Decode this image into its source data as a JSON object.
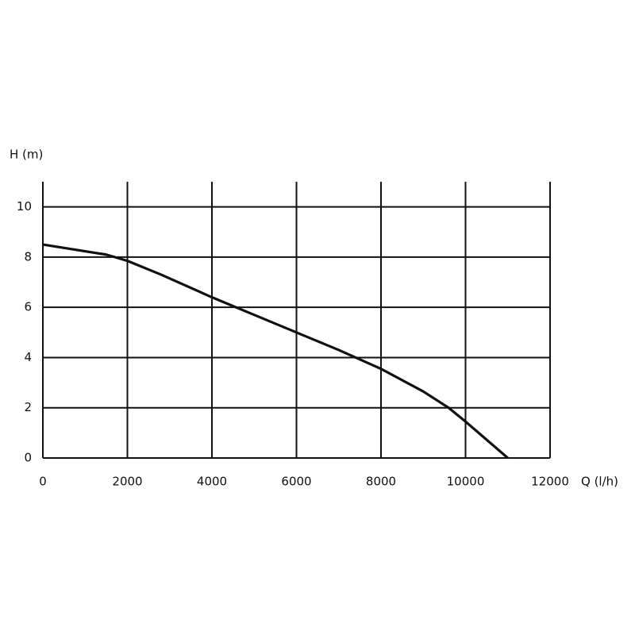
{
  "chart_data": {
    "type": "line",
    "x_label": "Q (l/h)",
    "y_label": "H (m)",
    "x": [
      0,
      1500,
      2000,
      2800,
      4000,
      5000,
      6000,
      7000,
      8000,
      9000,
      9600,
      10000,
      11000
    ],
    "series": [
      {
        "color": "#111111",
        "values": [
          8.5,
          8.1,
          7.85,
          7.3,
          6.4,
          5.7,
          5.0,
          4.3,
          3.55,
          2.65,
          2.0,
          1.45,
          0
        ]
      }
    ],
    "xlim": [
      0,
      12000
    ],
    "xticks": [
      0,
      2000,
      4000,
      6000,
      8000,
      10000,
      12000
    ],
    "ylim": [
      0,
      11
    ],
    "yticks": [
      0,
      2,
      4,
      6,
      8,
      10
    ],
    "grid": true
  }
}
